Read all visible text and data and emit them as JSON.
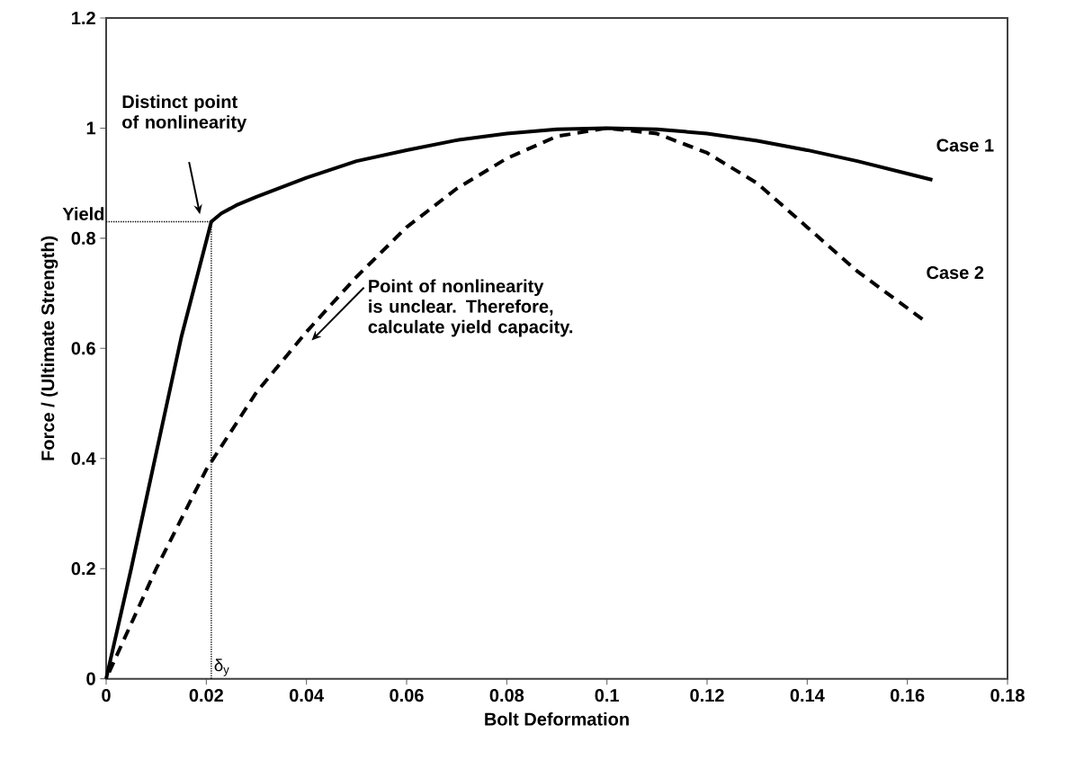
{
  "chart_data": {
    "type": "line",
    "xlabel": "Bolt Deformation",
    "ylabel": "Force / (Ultimate Strength)",
    "xlim": [
      0,
      0.18
    ],
    "xticks": [
      0,
      0.02,
      0.04,
      0.06,
      0.08,
      0.1,
      0.12,
      0.14,
      0.16,
      0.18
    ],
    "ylim": [
      0,
      1.2
    ],
    "yticks": [
      0,
      0.2,
      0.4,
      0.6,
      0.8,
      1,
      1.2
    ],
    "series": [
      {
        "name": "Case 1",
        "color": "#000000",
        "line_style": "solid",
        "x": [
          0,
          0.005,
          0.01,
          0.015,
          0.021,
          0.023,
          0.026,
          0.03,
          0.04,
          0.05,
          0.06,
          0.07,
          0.08,
          0.09,
          0.1,
          0.11,
          0.12,
          0.13,
          0.14,
          0.15,
          0.165
        ],
        "values": [
          0,
          0.2,
          0.41,
          0.62,
          0.83,
          0.845,
          0.86,
          0.875,
          0.91,
          0.94,
          0.96,
          0.978,
          0.99,
          0.998,
          1.0,
          0.998,
          0.99,
          0.977,
          0.96,
          0.94,
          0.906
        ]
      },
      {
        "name": "Case 2",
        "color": "#000000",
        "line_style": "dashed",
        "x": [
          0,
          0.01,
          0.02,
          0.03,
          0.04,
          0.05,
          0.06,
          0.07,
          0.08,
          0.09,
          0.1,
          0.11,
          0.12,
          0.13,
          0.14,
          0.15,
          0.163
        ],
        "values": [
          0,
          0.2,
          0.38,
          0.52,
          0.63,
          0.73,
          0.82,
          0.89,
          0.945,
          0.985,
          1.0,
          0.99,
          0.955,
          0.9,
          0.82,
          0.74,
          0.653
        ]
      }
    ],
    "ref_lines": [
      {
        "axis": "y",
        "value": 0.83,
        "label": "Yield",
        "line_style": "dotted"
      },
      {
        "axis": "x",
        "value": 0.021,
        "label": "δ$_{y}$",
        "line_style": "dotted"
      }
    ],
    "annotations": [
      "Distinct point of nonlinearity",
      "Point of nonlinearity is unclear.  Therefore, calculate yield capacity."
    ]
  }
}
